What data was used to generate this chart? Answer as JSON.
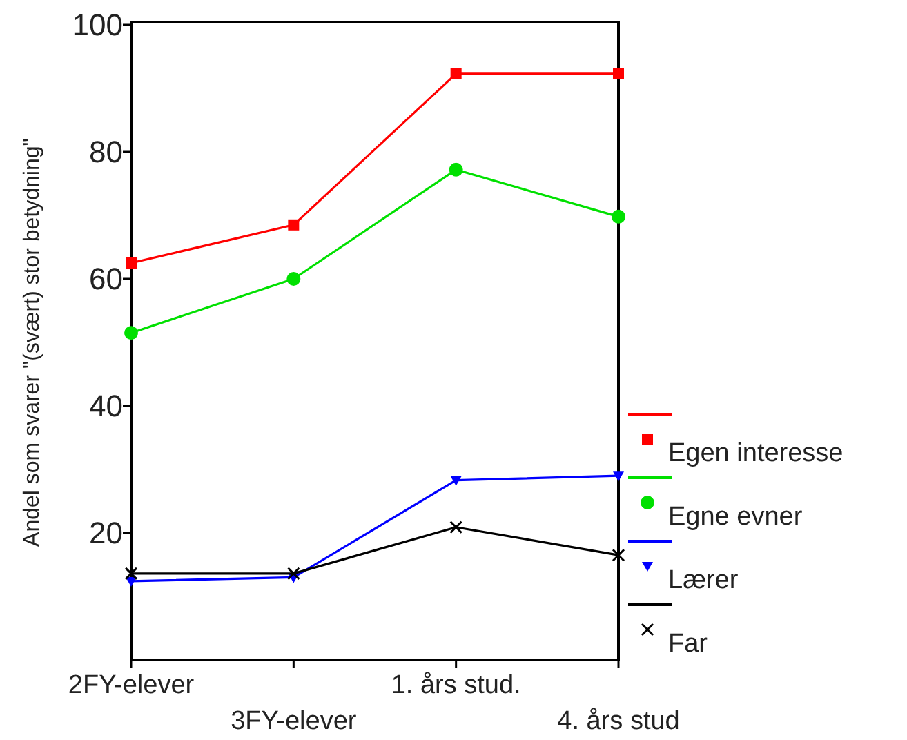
{
  "chart_data": {
    "type": "line",
    "ylabel": "Andel som svarer \"(svært) stor betydning\"",
    "categories": [
      "2FY-elever",
      "3FY-elever",
      "1. års stud.",
      "4. års stud"
    ],
    "ylim": [
      0,
      100
    ],
    "yticks": [
      20,
      40,
      60,
      80,
      100
    ],
    "grid": false,
    "legend": "right",
    "series": [
      {
        "name": "Egen interesse",
        "color": "#ff0000",
        "marker": "square",
        "values": [
          62.5,
          68.5,
          92.3,
          92.3
        ]
      },
      {
        "name": "Egne evner",
        "color": "#00e000",
        "marker": "circle",
        "values": [
          51.5,
          60,
          77.2,
          69.8
        ]
      },
      {
        "name": "Lærer",
        "color": "#0000ff",
        "marker": "triangle",
        "values": [
          12.4,
          13,
          28.3,
          29
        ]
      },
      {
        "name": "Far",
        "color": "#000000",
        "marker": "cross",
        "values": [
          13.6,
          13.6,
          20.9,
          16.5
        ]
      }
    ]
  }
}
